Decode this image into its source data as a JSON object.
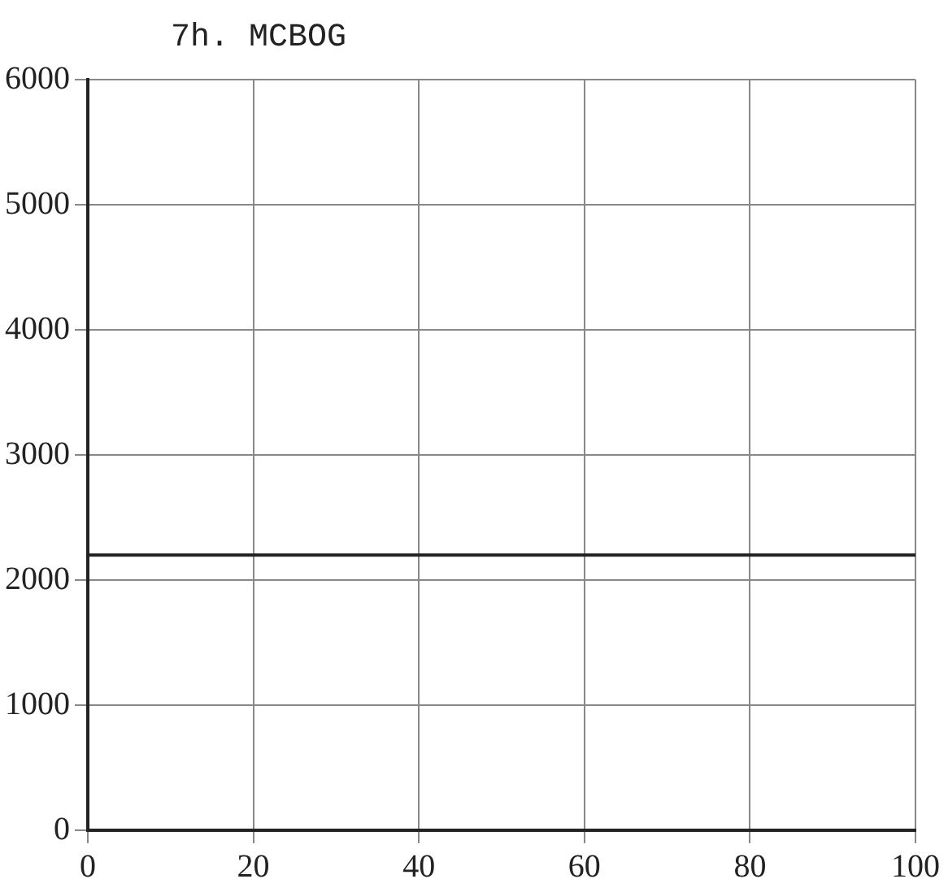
{
  "chart_data": {
    "type": "line",
    "title": "7h. MCBOG",
    "x": [
      0,
      100
    ],
    "values": [
      2200,
      2200
    ],
    "color": "#222222",
    "xlim": [
      0,
      100
    ],
    "xticks": [
      0,
      20,
      40,
      60,
      80,
      100
    ],
    "ylim": [
      0,
      6000
    ],
    "yticks": [
      0,
      1000,
      2000,
      3000,
      4000,
      5000,
      6000
    ],
    "grid": true,
    "marker": "none",
    "line_style": "solid"
  }
}
